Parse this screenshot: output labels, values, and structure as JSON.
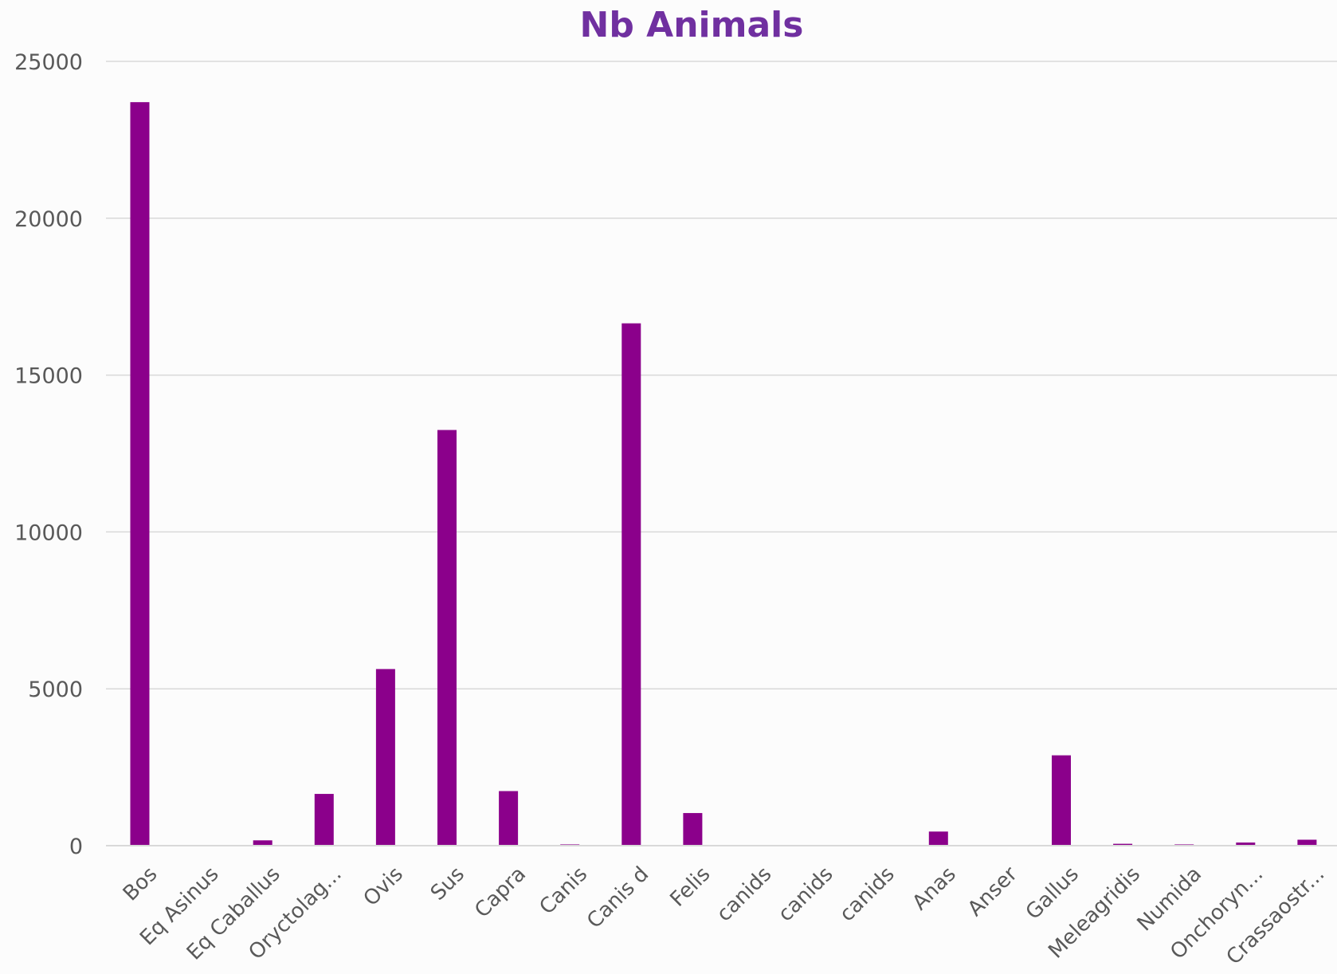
{
  "chart_data": {
    "type": "bar",
    "title": "Nb Animals",
    "xlabel": "",
    "ylabel": "",
    "ylim": [
      0,
      25000
    ],
    "yticks": [
      0,
      5000,
      10000,
      15000,
      20000,
      25000
    ],
    "ytick_labels": [
      "0",
      "5000",
      "10000",
      "15000",
      "20000",
      "25000"
    ],
    "grid": "horizontal",
    "legend": "none",
    "bar_color": "#8b008b",
    "title_color": "#7030a0",
    "categories": [
      "Bos",
      "Eq Asinus",
      "Eq Caballus",
      "Oryctolag...",
      "Ovis",
      "Sus",
      "Capra",
      "Canis",
      "Canis d",
      "Felis",
      "canids",
      "canids",
      "canids",
      "Anas",
      "Anser",
      "Gallus",
      "Meleagridis",
      "Numida",
      "Onchoryn...",
      "Crassaostr..."
    ],
    "values": [
      23700,
      0,
      170,
      1650,
      5630,
      13250,
      1740,
      40,
      16650,
      1040,
      0,
      0,
      0,
      450,
      0,
      2880,
      60,
      40,
      100,
      190
    ]
  }
}
